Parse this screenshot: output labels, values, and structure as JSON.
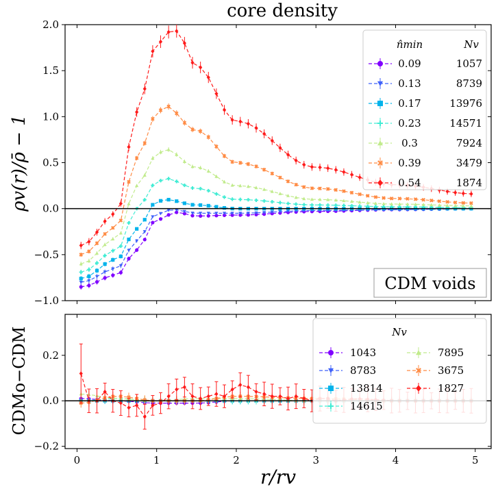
{
  "title": "core density",
  "top_ylabel": "ρv(r)/ρ̄ − 1",
  "bottom_ylabel": "CDMo−CDM",
  "xlabel": "r/rv",
  "annotation": "CDM voids",
  "top_legend": {
    "header_left": "n̂min",
    "header_right": "Nv",
    "entries": [
      {
        "n": "0.09",
        "N": "1057"
      },
      {
        "n": "0.13",
        "N": "8739"
      },
      {
        "n": "0.17",
        "N": "13976"
      },
      {
        "n": "0.23",
        "N": "14571"
      },
      {
        "n": "0.3",
        "N": "7924"
      },
      {
        "n": "0.39",
        "N": "3479"
      },
      {
        "n": "0.54",
        "N": "1874"
      }
    ]
  },
  "bottom_legend": {
    "header": "Nv",
    "entries": [
      "1043",
      "8783",
      "13814",
      "14615",
      "7895",
      "3675",
      "1827"
    ]
  },
  "chart_data": [
    {
      "type": "line",
      "title": "core density",
      "xlabel": "r/r_v",
      "ylabel": "rho_v(r)/rho_bar - 1",
      "xlim": [
        -0.15,
        5.2
      ],
      "ylim": [
        -1.0,
        2.0
      ],
      "xticks": [
        "0",
        "1",
        "2",
        "3",
        "4",
        "5"
      ],
      "yticks": [
        "−1.0",
        "−0.5",
        "0.0",
        "0.5",
        "1.0",
        "1.5",
        "2.0"
      ],
      "legend_location": "top-right",
      "series": [
        {
          "name": "0.09 / 1057",
          "color": "#8000ff",
          "marker": "circle",
          "values": [
            [
              0.05,
              -0.85
            ],
            [
              0.5,
              -0.72
            ],
            [
              0.75,
              -0.45
            ],
            [
              1.0,
              -0.12
            ],
            [
              1.25,
              -0.04
            ],
            [
              1.5,
              -0.08
            ],
            [
              2.0,
              -0.07
            ],
            [
              3.0,
              -0.03
            ],
            [
              4.0,
              -0.01
            ],
            [
              5.0,
              0.0
            ]
          ]
        },
        {
          "name": "0.13 / 8739",
          "color": "#3f61fa",
          "marker": "triangle-down",
          "values": [
            [
              0.05,
              -0.8
            ],
            [
              0.5,
              -0.65
            ],
            [
              0.75,
              -0.35
            ],
            [
              1.0,
              -0.06
            ],
            [
              1.2,
              -0.01
            ],
            [
              1.5,
              -0.05
            ],
            [
              2.0,
              -0.05
            ],
            [
              3.0,
              -0.02
            ],
            [
              4.0,
              -0.01
            ],
            [
              5.0,
              0.0
            ]
          ]
        },
        {
          "name": "0.17 / 13976",
          "color": "#01b3eb",
          "marker": "square",
          "values": [
            [
              0.05,
              -0.76
            ],
            [
              0.5,
              -0.55
            ],
            [
              0.75,
              -0.22
            ],
            [
              1.0,
              0.07
            ],
            [
              1.1,
              0.1
            ],
            [
              1.5,
              0.04
            ],
            [
              2.0,
              0.0
            ],
            [
              3.0,
              0.0
            ],
            [
              4.0,
              0.0
            ],
            [
              5.0,
              0.0
            ]
          ]
        },
        {
          "name": "0.23 / 14571",
          "color": "#40ecd4",
          "marker": "plus",
          "values": [
            [
              0.05,
              -0.69
            ],
            [
              0.5,
              -0.45
            ],
            [
              0.75,
              0.0
            ],
            [
              1.0,
              0.28
            ],
            [
              1.1,
              0.33
            ],
            [
              1.5,
              0.22
            ],
            [
              2.0,
              0.1
            ],
            [
              3.0,
              0.04
            ],
            [
              4.0,
              0.02
            ],
            [
              5.0,
              0.01
            ]
          ]
        },
        {
          "name": "0.3 / 7924",
          "color": "#c1eb8c",
          "marker": "triangle-up",
          "values": [
            [
              0.05,
              -0.6
            ],
            [
              0.5,
              -0.32
            ],
            [
              0.75,
              0.25
            ],
            [
              1.0,
              0.58
            ],
            [
              1.1,
              0.65
            ],
            [
              1.5,
              0.45
            ],
            [
              2.0,
              0.25
            ],
            [
              3.0,
              0.1
            ],
            [
              4.0,
              0.05
            ],
            [
              5.0,
              0.03
            ]
          ]
        },
        {
          "name": "0.39 / 3479",
          "color": "#ff8b44",
          "marker": "x",
          "values": [
            [
              0.05,
              -0.5
            ],
            [
              0.5,
              -0.2
            ],
            [
              0.75,
              0.55
            ],
            [
              1.0,
              1.02
            ],
            [
              1.1,
              1.12
            ],
            [
              1.5,
              0.85
            ],
            [
              2.0,
              0.5
            ],
            [
              3.0,
              0.22
            ],
            [
              4.0,
              0.11
            ],
            [
              5.0,
              0.06
            ]
          ]
        },
        {
          "name": "0.54 / 1874",
          "color": "#ff1a1a",
          "marker": "diamond",
          "values": [
            [
              0.05,
              -0.4
            ],
            [
              0.5,
              -0.05
            ],
            [
              0.75,
              1.05
            ],
            [
              1.0,
              1.78
            ],
            [
              1.15,
              1.92
            ],
            [
              1.25,
              1.93
            ],
            [
              1.5,
              1.55
            ],
            [
              2.0,
              0.95
            ],
            [
              3.0,
              0.45
            ],
            [
              4.0,
              0.26
            ],
            [
              5.0,
              0.16
            ]
          ]
        }
      ]
    },
    {
      "type": "line",
      "xlabel": "r/r_v",
      "ylabel": "CDMo-CDM",
      "xlim": [
        -0.15,
        5.2
      ],
      "ylim": [
        -0.21,
        0.38
      ],
      "xticks": [
        "0",
        "1",
        "2",
        "3",
        "4",
        "5"
      ],
      "yticks": [
        "−0.2",
        "0.0",
        "0.2"
      ],
      "legend_location": "top-right",
      "series": [
        {
          "name": "1043",
          "color": "#8000ff",
          "marker": "circle",
          "values": [
            [
              0.05,
              0.01
            ],
            [
              0.5,
              0.0
            ],
            [
              1.0,
              -0.01
            ],
            [
              1.5,
              -0.01
            ],
            [
              2.0,
              0.0
            ],
            [
              3.0,
              0.0
            ],
            [
              4.0,
              0.0
            ],
            [
              5.0,
              0.0
            ]
          ]
        },
        {
          "name": "8783",
          "color": "#3f61fa",
          "marker": "triangle-down",
          "values": [
            [
              0.05,
              0.0
            ],
            [
              0.5,
              0.0
            ],
            [
              1.0,
              0.0
            ],
            [
              1.5,
              0.0
            ],
            [
              2.0,
              0.0
            ],
            [
              3.0,
              0.0
            ],
            [
              4.0,
              0.0
            ],
            [
              5.0,
              0.0
            ]
          ]
        },
        {
          "name": "13814",
          "color": "#01b3eb",
          "marker": "square",
          "values": [
            [
              0.05,
              0.0
            ],
            [
              0.5,
              0.0
            ],
            [
              1.0,
              0.0
            ],
            [
              1.5,
              0.0
            ],
            [
              2.0,
              0.0
            ],
            [
              3.0,
              0.0
            ],
            [
              4.0,
              0.0
            ],
            [
              5.0,
              0.0
            ]
          ]
        },
        {
          "name": "14615",
          "color": "#40ecd4",
          "marker": "plus",
          "values": [
            [
              0.05,
              0.0
            ],
            [
              0.5,
              0.01
            ],
            [
              1.0,
              0.0
            ],
            [
              1.5,
              0.0
            ],
            [
              2.0,
              0.0
            ],
            [
              3.0,
              0.0
            ],
            [
              4.0,
              0.0
            ],
            [
              5.0,
              0.0
            ]
          ]
        },
        {
          "name": "7895",
          "color": "#c1eb8c",
          "marker": "triangle-up",
          "values": [
            [
              0.05,
              0.03
            ],
            [
              0.5,
              0.01
            ],
            [
              1.0,
              0.0
            ],
            [
              1.5,
              0.01
            ],
            [
              2.0,
              0.01
            ],
            [
              3.0,
              0.0
            ],
            [
              4.0,
              0.0
            ],
            [
              5.0,
              0.0
            ]
          ]
        },
        {
          "name": "3675",
          "color": "#ff8b44",
          "marker": "x",
          "values": [
            [
              0.05,
              -0.01
            ],
            [
              0.5,
              0.02
            ],
            [
              1.0,
              0.0
            ],
            [
              1.5,
              0.0
            ],
            [
              2.0,
              0.02
            ],
            [
              3.0,
              0.01
            ],
            [
              4.0,
              0.0
            ],
            [
              5.0,
              0.0
            ]
          ]
        },
        {
          "name": "1827",
          "color": "#ff1a1a",
          "marker": "diamond",
          "values": [
            [
              0.05,
              0.12
            ],
            [
              0.15,
              0.0
            ],
            [
              0.25,
              0.0
            ],
            [
              0.35,
              0.04
            ],
            [
              0.45,
              0.0
            ],
            [
              0.55,
              -0.01
            ],
            [
              0.65,
              -0.03
            ],
            [
              0.75,
              -0.02
            ],
            [
              0.85,
              -0.07
            ],
            [
              0.95,
              -0.02
            ],
            [
              1.05,
              -0.01
            ],
            [
              1.15,
              0.02
            ],
            [
              1.25,
              0.05
            ],
            [
              1.35,
              0.06
            ],
            [
              1.45,
              0.02
            ],
            [
              1.55,
              0.01
            ],
            [
              1.65,
              0.02
            ],
            [
              1.75,
              0.03
            ],
            [
              1.85,
              0.02
            ],
            [
              1.95,
              0.05
            ],
            [
              2.05,
              0.07
            ],
            [
              2.15,
              0.06
            ],
            [
              2.25,
              0.04
            ],
            [
              2.35,
              0.03
            ],
            [
              2.45,
              0.02
            ],
            [
              2.55,
              0.02
            ],
            [
              2.65,
              0.01
            ],
            [
              2.75,
              0.02
            ],
            [
              2.85,
              0.01
            ],
            [
              2.95,
              0.0
            ],
            [
              3.05,
              0.01
            ],
            [
              3.15,
              0.01
            ],
            [
              3.25,
              0.0
            ],
            [
              3.5,
              0.01
            ],
            [
              4.0,
              0.0
            ],
            [
              4.5,
              0.0
            ],
            [
              5.0,
              0.0
            ]
          ]
        }
      ]
    }
  ]
}
